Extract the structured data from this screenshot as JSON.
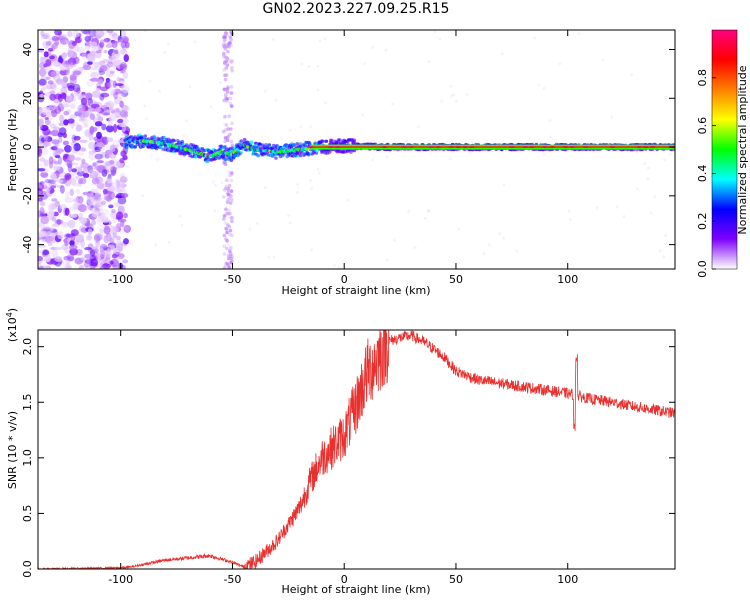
{
  "title": "GN02.2023.227.09.25.R15",
  "chart_data": [
    {
      "type": "heatmap",
      "xlabel": "Height of straight line (km)",
      "ylabel": "Frequency (Hz)",
      "xlim": [
        -137,
        148
      ],
      "ylim": [
        -50,
        48
      ],
      "xticks": [
        -100,
        -50,
        0,
        50,
        100
      ],
      "yticks": [
        -40,
        -20,
        0,
        20,
        40
      ],
      "colorbar": {
        "label": "Normalized spectral amplitude",
        "range": [
          0,
          1
        ],
        "ticks": [
          "0.0",
          "0.2",
          "0.4",
          "0.6",
          "0.8"
        ],
        "colors": [
          "#ffffff",
          "#7f00ff",
          "#0000ff",
          "#00ffff",
          "#00ff00",
          "#ffff00",
          "#ff7f00",
          "#ff0000",
          "#ff0080"
        ]
      },
      "ridge": {
        "x": [
          -98,
          -90,
          -80,
          -70,
          -60,
          -55,
          -50,
          -45,
          -40,
          -30,
          -20,
          -10,
          0,
          20,
          50,
          100,
          148
        ],
        "y": [
          2,
          2.5,
          1.5,
          -1,
          -4,
          -2,
          -3,
          1,
          -1,
          -2,
          -1,
          0,
          0.5,
          0,
          0,
          0,
          0
        ]
      },
      "grid": false,
      "legend": "none"
    },
    {
      "type": "line",
      "xlabel": "Height of straight line (km)",
      "ylabel": "SNR (10 * v/v)",
      "yscale_label": "(x10",
      "yscale_exp": "4",
      "yscale_close": ")",
      "xlim": [
        -137,
        148
      ],
      "ylim": [
        0,
        2.15
      ],
      "xticks": [
        -100,
        -50,
        0,
        50,
        100
      ],
      "yticks": [
        "0.0",
        "0.5",
        "1.0",
        "1.5",
        "2.0"
      ],
      "series_color": "#e8312f",
      "series_envelope": {
        "x": [
          -137,
          -100,
          -95,
          -80,
          -70,
          -60,
          -50,
          -45,
          -40,
          -30,
          -20,
          -15,
          -10,
          -5,
          0,
          5,
          10,
          15,
          20,
          25,
          30,
          35,
          40,
          45,
          50,
          60,
          80,
          100,
          110,
          120,
          130,
          148
        ],
        "y": [
          0.0,
          0.01,
          0.02,
          0.08,
          0.1,
          0.12,
          0.06,
          0.02,
          0.06,
          0.25,
          0.55,
          0.8,
          1.0,
          1.1,
          1.2,
          1.45,
          1.75,
          1.9,
          2.05,
          2.08,
          2.1,
          2.05,
          1.98,
          1.9,
          1.78,
          1.7,
          1.64,
          1.58,
          1.53,
          1.5,
          1.46,
          1.4
        ]
      },
      "grid": false,
      "legend": "none"
    }
  ]
}
